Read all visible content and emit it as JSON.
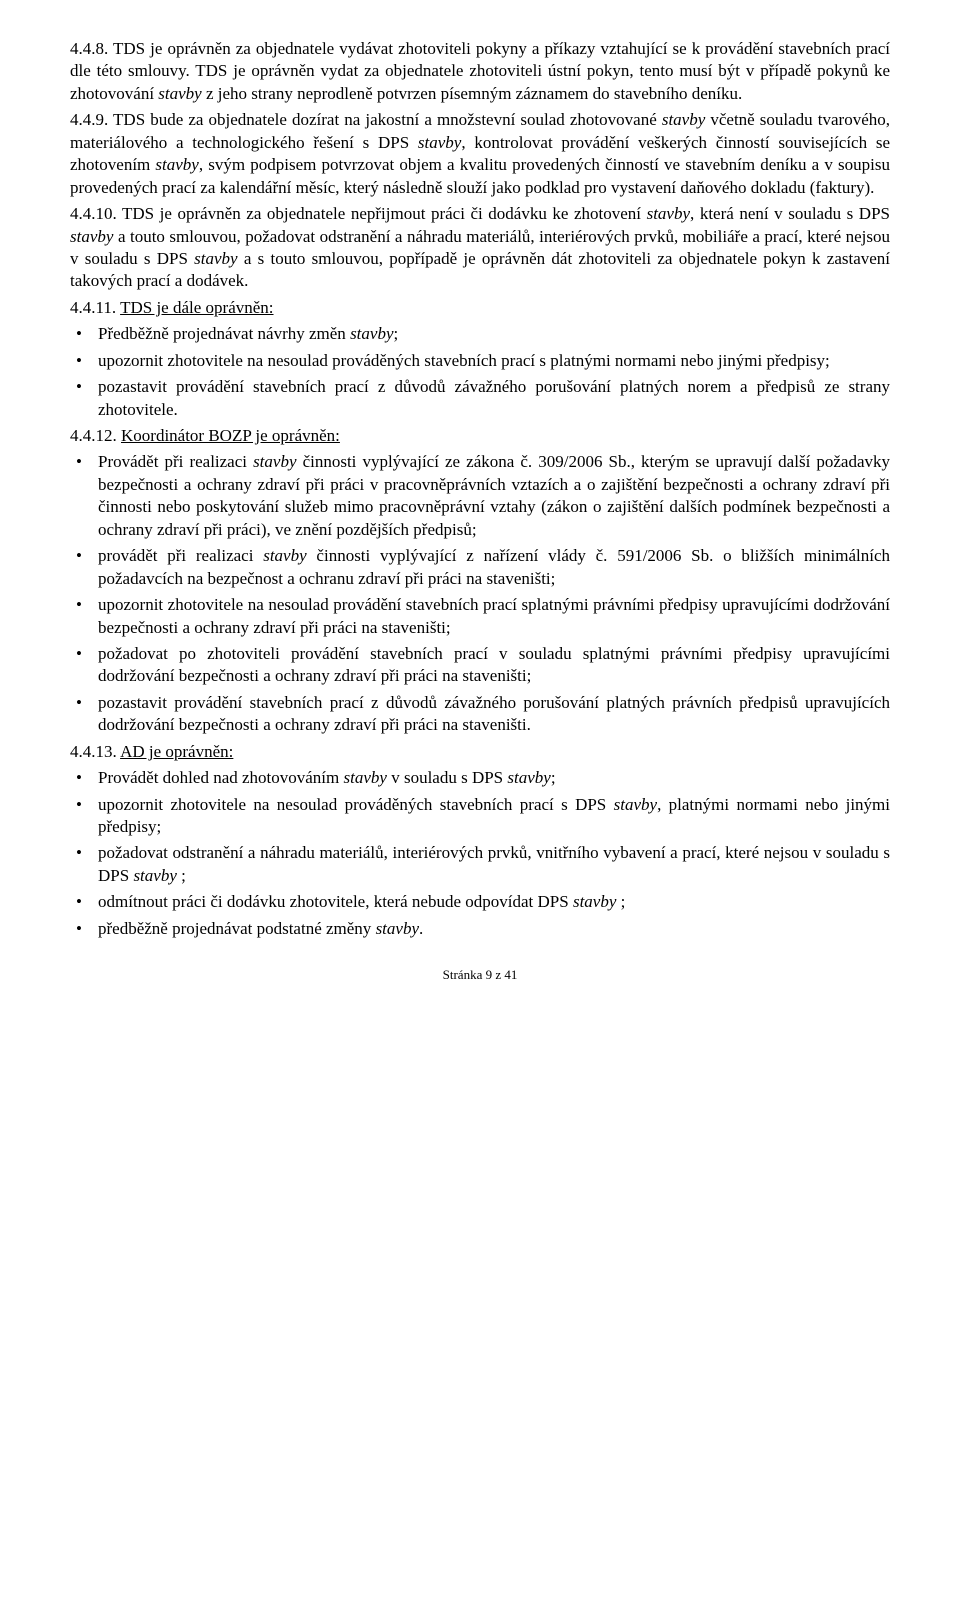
{
  "c448": {
    "num": "4.4.8.",
    "text": "TDS je oprávněn za objednatele vydávat zhotoviteli pokyny a příkazy vztahující se k provádění stavebních prací dle této smlouvy. TDS je oprávněn vydat za objednatele zhotoviteli ústní pokyn, tento musí být v případě pokynů ke zhotovování ",
    "i1": "stavby",
    "text2": " z jeho strany neprodleně potvrzen písemným záznamem do stavebního deníku."
  },
  "c449": {
    "num": "4.4.9.",
    "text1": "TDS bude za objednatele dozírat na jakostní a množstevní soulad zhotovované ",
    "i1": "stavby",
    "text2": " včetně souladu tvarového, materiálového a technologického řešení s DPS ",
    "i2": "stavby",
    "text3": ", kontrolovat provádění veškerých činností souvisejících se zhotovením ",
    "i3": "stavby",
    "text4": ", svým podpisem potvrzovat objem a kvalitu provedených činností ve stavebním deníku a v soupisu provedených prací za kalendářní měsíc, který následně slouží jako podklad pro vystavení daňového dokladu (faktury)."
  },
  "c4410": {
    "num": "4.4.10.",
    "text1": "TDS je oprávněn za objednatele nepřijmout práci či dodávku ke zhotovení ",
    "i1": "stavby",
    "text2": ", která není v souladu s DPS ",
    "i2": "stavby",
    "text3": " a touto smlouvou, požadovat odstranění a náhradu materiálů, interiérových prvků, mobiliáře a prací, které nejsou v souladu s DPS ",
    "i3": "stavby",
    "text4": " a s touto smlouvou, popřípadě je oprávněn dát zhotoviteli za objednatele pokyn k zastavení takových prací a dodávek."
  },
  "c4411": {
    "num": "4.4.11.",
    "heading": "TDS je dále oprávněn:",
    "items": [
      {
        "t1": "Předběžně projednávat návrhy změn ",
        "i1": "stavby",
        "t2": ";"
      },
      {
        "t1": "upozornit zhotovitele na nesoulad prováděných stavebních prací s platnými normami nebo jinými předpisy;"
      },
      {
        "t1": "pozastavit provádění stavebních prací z důvodů závažného porušování platných norem a předpisů ze strany zhotovitele."
      }
    ]
  },
  "c4412": {
    "num": "4.4.12.",
    "heading": "Koordinátor BOZP je oprávněn:",
    "items": [
      {
        "t1": "Provádět při realizaci ",
        "i1": "stavby",
        "t2": " činnosti vyplývající ze zákona č. 309/2006 Sb., kterým se upravují další požadavky bezpečnosti a ochrany zdraví při práci v pracovněprávních vztazích a o zajištění bezpečnosti a ochrany zdraví při činnosti nebo poskytování služeb mimo pracovněprávní vztahy (zákon o zajištění dalších podmínek bezpečnosti a ochrany zdraví při práci), ve znění pozdějších předpisů;"
      },
      {
        "t1": "provádět při realizaci ",
        "i1": "stavby",
        "t2": " činnosti vyplývající z nařízení vlády č. 591/2006 Sb. o bližších minimálních požadavcích na bezpečnost a ochranu zdraví při práci na staveništi;"
      },
      {
        "t1": "upozornit zhotovitele na nesoulad provádění stavebních prací splatnými právními předpisy upravujícími dodržování bezpečnosti a ochrany zdraví při práci na staveništi;"
      },
      {
        "t1": "požadovat po zhotoviteli provádění stavebních prací v souladu splatnými právními předpisy upravujícími dodržování bezpečnosti a ochrany zdraví při práci na staveništi;"
      },
      {
        "t1": "pozastavit provádění stavebních prací z důvodů závažného porušování platných právních předpisů upravujících dodržování bezpečnosti a ochrany zdraví při práci na staveništi."
      }
    ]
  },
  "c4413": {
    "num": "4.4.13.",
    "heading": "AD je oprávněn:",
    "items": [
      {
        "t1": "Provádět dohled nad zhotovováním ",
        "i1": "stavby",
        "t2": " v souladu s DPS ",
        "i2": "stavby",
        "t3": ";"
      },
      {
        "t1": "upozornit zhotovitele na nesoulad prováděných stavebních prací s DPS ",
        "i1": "stavby",
        "t2": ", platnými normami nebo jinými předpisy;"
      },
      {
        "t1": "požadovat odstranění a náhradu materiálů, interiérových prvků, vnitřního vybavení a prací, které nejsou v souladu s DPS ",
        "i1": "stavby",
        "t2": " ;"
      },
      {
        "t1": "odmítnout práci či dodávku zhotovitele, která nebude odpovídat DPS ",
        "i1": "stavby",
        "t2": " ;"
      },
      {
        "t1": "předběžně projednávat podstatné změny ",
        "i1": "stavby",
        "t2": "."
      }
    ]
  },
  "footer": "Stránka 9 z 41"
}
